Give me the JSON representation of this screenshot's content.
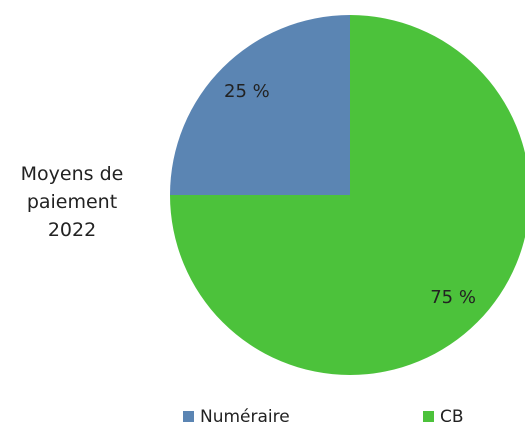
{
  "chart_data": {
    "type": "pie",
    "title": "Moyens de paiement 2022",
    "categories": [
      "Numéraire",
      "CB"
    ],
    "values": [
      25,
      75
    ],
    "value_labels": [
      "25 %",
      "75 %"
    ],
    "colors": [
      "#5b85b3",
      "#4cc23b"
    ],
    "legend": "bottom"
  }
}
